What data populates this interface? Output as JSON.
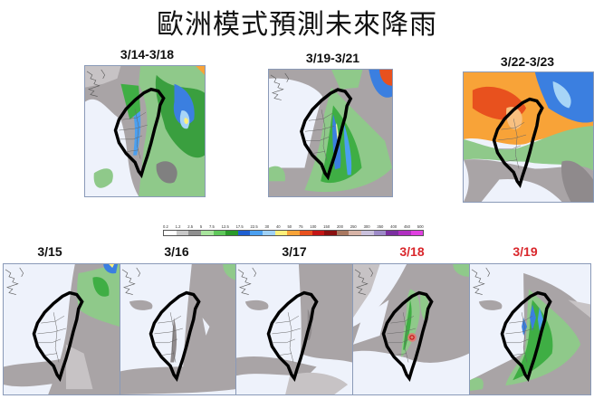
{
  "title": "歐洲模式預測未來降雨",
  "colorbar": {
    "ticks": [
      "0.2",
      "1.2",
      "2.5",
      "5",
      "7.5",
      "12.5",
      "17.5",
      "22.5",
      "30",
      "40",
      "50",
      "75",
      "100",
      "150",
      "200",
      "250",
      "300",
      "350",
      "400",
      "450",
      "500"
    ],
    "colors": [
      "#ffffff",
      "#c8c8c8",
      "#8f8f8f",
      "#a7e49c",
      "#5fc85a",
      "#2a9a2a",
      "#1f5fd1",
      "#4a9ff0",
      "#9fd1f5",
      "#fff07a",
      "#f8a338",
      "#e8511e",
      "#c41616",
      "#8a1010",
      "#a97860",
      "#d7b3a6",
      "#c9c0dc",
      "#9d8ac8",
      "#7b2fa0",
      "#b02fc0",
      "#e040e0"
    ]
  },
  "top_panels": [
    {
      "label": "3/14-3/18",
      "highlight": false
    },
    {
      "label": "3/19-3/21",
      "highlight": false
    },
    {
      "label": "3/22-3/23",
      "highlight": false
    }
  ],
  "bottom_panels": [
    {
      "label": "3/15",
      "highlight": false
    },
    {
      "label": "3/16",
      "highlight": false
    },
    {
      "label": "3/17",
      "highlight": false
    },
    {
      "label": "3/18",
      "highlight": true
    },
    {
      "label": "3/19",
      "highlight": true
    }
  ],
  "colors": {
    "highlight_label": "#d9262b",
    "map_border": "#8a9ab8",
    "outline": "#000000"
  }
}
